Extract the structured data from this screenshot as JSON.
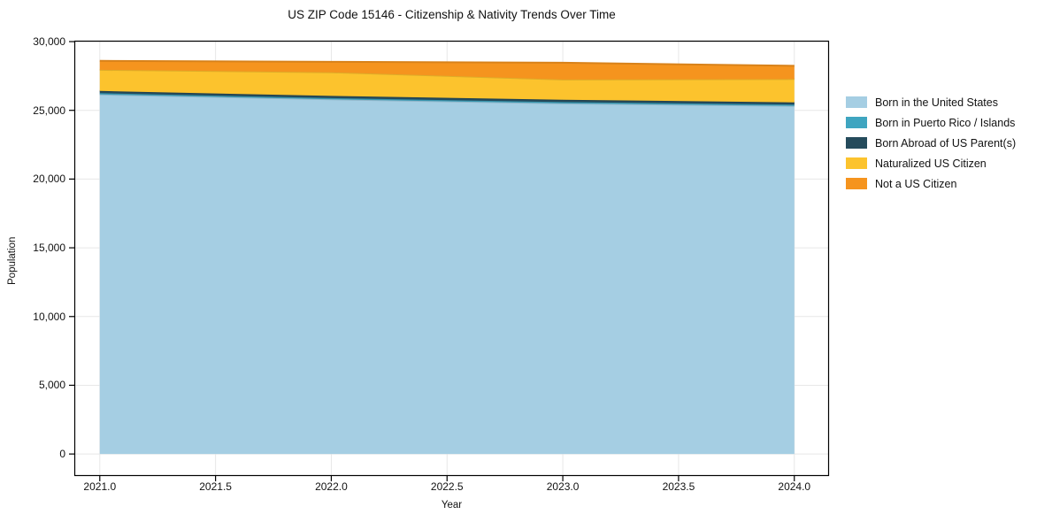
{
  "chart_data": {
    "type": "area",
    "stacked": true,
    "title": "US ZIP Code 15146 - Citizenship & Nativity Trends Over Time",
    "xlabel": "Year",
    "ylabel": "Population",
    "x": [
      2021,
      2022,
      2023,
      2024
    ],
    "series": [
      {
        "name": "Born in the United States",
        "color": "#a5cee3",
        "values": [
          26150,
          25800,
          25500,
          25320
        ]
      },
      {
        "name": "Born in Puerto Rico / Islands",
        "color": "#3fa5c0",
        "values": [
          100,
          90,
          100,
          100
        ]
      },
      {
        "name": "Born Abroad of US Parent(s)",
        "color": "#254b5c",
        "values": [
          160,
          160,
          170,
          160
        ]
      },
      {
        "name": "Naturalized US Citizen",
        "color": "#fcc32d",
        "values": [
          1540,
          1720,
          1470,
          1700
        ]
      },
      {
        "name": "Not a US Citizen",
        "color": "#f5941e",
        "values": [
          650,
          760,
          1220,
          960
        ]
      }
    ],
    "x_ticks": {
      "values": [
        2021,
        2021.5,
        2022,
        2022.5,
        2023,
        2023.5,
        2024
      ],
      "labels": [
        "2021.0",
        "2021.5",
        "2022.0",
        "2022.5",
        "2023.0",
        "2023.5",
        "2024.0"
      ]
    },
    "y_ticks": {
      "values": [
        0,
        5000,
        10000,
        15000,
        20000,
        25000,
        30000
      ],
      "labels": [
        "0",
        "5,000",
        "10,000",
        "15,000",
        "20,000",
        "25,000",
        "30,000"
      ]
    },
    "xlim": [
      2020.89,
      2024.15
    ],
    "ylim": [
      -1600,
      30065
    ],
    "grid": true,
    "grid_color": "#e7e7e7",
    "frame_color": "#000000",
    "background": "#ffffff",
    "legend_position": "right"
  }
}
